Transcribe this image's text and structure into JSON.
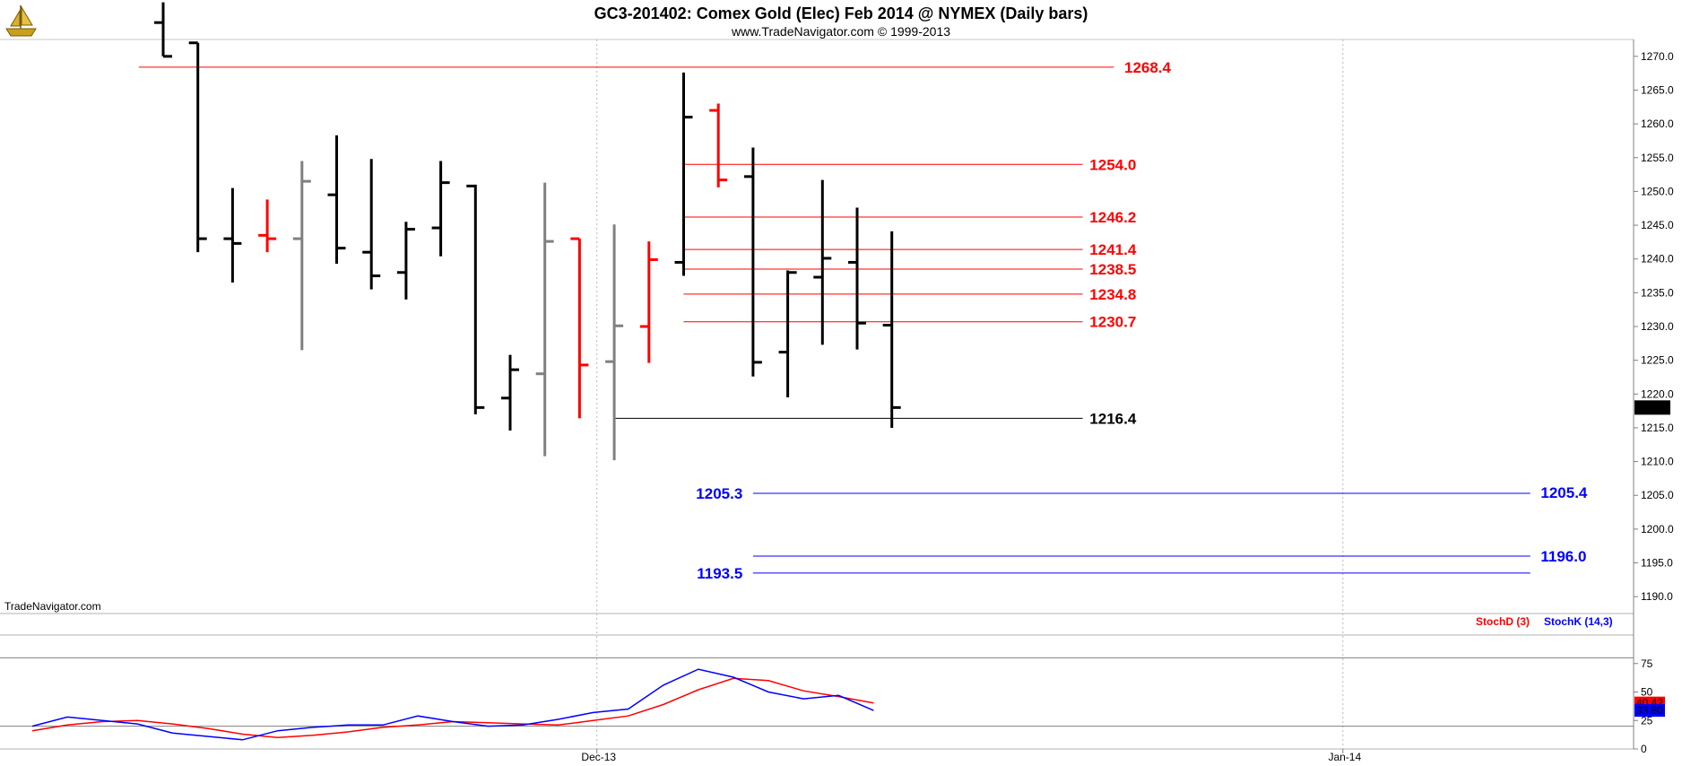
{
  "header": {
    "title": "GC3-201402:  Comex Gold (Elec) Feb 2014 @ NYMEX  (Daily bars)",
    "subtitle": "www.TradeNavigator.com © 1999-2013",
    "watermark": "TradeNavigator.com",
    "logo_icon": "caravel-ship-icon"
  },
  "colors": {
    "up_bar": "#000000",
    "down_bar": "#ff0000",
    "neutral_bar": "#808080",
    "resistance_line": "#ff0000",
    "support_line": "#0000ff",
    "stoch_d": "#ff0000",
    "stoch_k": "#0000ff",
    "background": "#ffffff"
  },
  "chart_data": [
    {
      "type": "ohlc",
      "title": "GC3-201402:  Comex Gold (Elec) Feb 2014 @ NYMEX  (Daily bars)",
      "ylim": [
        1187.5,
        1272.5
      ],
      "y_ticks": [
        "1270.0",
        "1265.0",
        "1260.0",
        "1255.0",
        "1250.0",
        "1245.0",
        "1240.0",
        "1235.0",
        "1230.0",
        "1225.0",
        "1220.0",
        "1215.0",
        "1210.0",
        "1205.0",
        "1200.0",
        "1195.0",
        "1190.0"
      ],
      "x_labels": [
        {
          "label": "Dec-13",
          "bar": 12.5
        },
        {
          "label": "Jan-14",
          "bar": 34
        }
      ],
      "last_price": "1218.0",
      "bars": [
        {
          "o": 1275.0,
          "h": 1278.0,
          "l": 1270.0,
          "c": 1270.0,
          "color": "black"
        },
        {
          "o": 1272.0,
          "h": 1272.0,
          "l": 1241.0,
          "c": 1243.0,
          "color": "black"
        },
        {
          "o": 1243.0,
          "h": 1250.5,
          "l": 1236.5,
          "c": 1242.3,
          "color": "black"
        },
        {
          "o": 1243.5,
          "h": 1248.8,
          "l": 1241.0,
          "c": 1243.0,
          "color": "red"
        },
        {
          "o": 1243.0,
          "h": 1254.5,
          "l": 1226.5,
          "c": 1251.5,
          "color": "gray"
        },
        {
          "o": 1249.5,
          "h": 1258.3,
          "l": 1239.3,
          "c": 1241.6,
          "color": "black"
        },
        {
          "o": 1241.0,
          "h": 1254.8,
          "l": 1235.5,
          "c": 1237.5,
          "color": "black"
        },
        {
          "o": 1238.0,
          "h": 1245.5,
          "l": 1234.0,
          "c": 1244.4,
          "color": "black"
        },
        {
          "o": 1244.6,
          "h": 1254.5,
          "l": 1240.4,
          "c": 1251.3,
          "color": "black"
        },
        {
          "o": 1250.8,
          "h": 1251.0,
          "l": 1217.0,
          "c": 1218.0,
          "color": "black"
        },
        {
          "o": 1219.4,
          "h": 1225.8,
          "l": 1214.6,
          "c": 1223.6,
          "color": "black"
        },
        {
          "o": 1223.0,
          "h": 1251.3,
          "l": 1210.8,
          "c": 1242.6,
          "color": "gray"
        },
        {
          "o": 1243.0,
          "h": 1243.0,
          "l": 1216.4,
          "c": 1224.3,
          "color": "red"
        },
        {
          "o": 1224.8,
          "h": 1245.1,
          "l": 1210.2,
          "c": 1230.1,
          "color": "gray"
        },
        {
          "o": 1230.0,
          "h": 1242.6,
          "l": 1224.6,
          "c": 1239.9,
          "color": "red"
        },
        {
          "o": 1239.5,
          "h": 1267.6,
          "l": 1237.5,
          "c": 1261.0,
          "color": "black"
        },
        {
          "o": 1262.0,
          "h": 1263.0,
          "l": 1250.6,
          "c": 1251.7,
          "color": "red"
        },
        {
          "o": 1252.2,
          "h": 1256.5,
          "l": 1222.6,
          "c": 1224.7,
          "color": "black"
        },
        {
          "o": 1226.2,
          "h": 1238.3,
          "l": 1219.5,
          "c": 1238.0,
          "color": "black"
        },
        {
          "o": 1237.3,
          "h": 1251.7,
          "l": 1227.3,
          "c": 1240.1,
          "color": "black"
        },
        {
          "o": 1239.5,
          "h": 1247.6,
          "l": 1226.6,
          "c": 1230.5,
          "color": "black"
        },
        {
          "o": 1230.2,
          "h": 1244.1,
          "l": 1215.0,
          "c": 1218.0,
          "color": "black"
        }
      ],
      "levels": [
        {
          "value": 1268.4,
          "label": "1268.4",
          "color": "red",
          "from_bar": -0.7,
          "to_bar": 27.4,
          "label_side": "right",
          "label_at": 27.7
        },
        {
          "value": 1254.0,
          "label": "1254.0",
          "color": "red",
          "from_bar": 15.0,
          "to_bar": 26.5,
          "label_side": "right",
          "label_at": 26.7
        },
        {
          "value": 1246.2,
          "label": "1246.2",
          "color": "red",
          "from_bar": 15.0,
          "to_bar": 26.5,
          "label_side": "right",
          "label_at": 26.7
        },
        {
          "value": 1241.4,
          "label": "1241.4",
          "color": "red",
          "from_bar": 15.0,
          "to_bar": 26.5,
          "label_side": "right",
          "label_at": 26.7
        },
        {
          "value": 1238.5,
          "label": "1238.5",
          "color": "red",
          "from_bar": 15.0,
          "to_bar": 26.5,
          "label_side": "right",
          "label_at": 26.7
        },
        {
          "value": 1234.8,
          "label": "1234.8",
          "color": "red",
          "from_bar": 15.0,
          "to_bar": 26.5,
          "label_side": "right",
          "label_at": 26.7
        },
        {
          "value": 1230.7,
          "label": "1230.7",
          "color": "red",
          "from_bar": 15.0,
          "to_bar": 26.5,
          "label_side": "right",
          "label_at": 26.7
        },
        {
          "value": 1216.4,
          "label": "1216.4",
          "color": "black",
          "from_bar": 13.0,
          "to_bar": 26.5,
          "label_side": "right",
          "label_at": 26.7
        },
        {
          "value": 1205.3,
          "label": "1205.3",
          "color": "blue",
          "from_bar": 17.0,
          "to_bar": 39.4,
          "label_side": "left",
          "label_at": 16.7
        },
        {
          "value": 1205.4,
          "label": "1205.4",
          "color": "blue",
          "from_bar": 39.4,
          "to_bar": 39.4,
          "label_side": "right",
          "label_at": 39.7
        },
        {
          "value": 1196.0,
          "label": "1196.0",
          "color": "blue",
          "from_bar": 17.0,
          "to_bar": 39.4,
          "label_side": "right",
          "label_at": 39.7
        },
        {
          "value": 1193.5,
          "label": "1193.5",
          "color": "blue",
          "from_bar": 17.0,
          "to_bar": 39.4,
          "label_side": "left",
          "label_at": 16.7
        }
      ]
    },
    {
      "type": "line",
      "legend": [
        {
          "name": "StochD (3)",
          "color": "red"
        },
        {
          "name": "StochK (14,3)",
          "color": "blue"
        }
      ],
      "ylim": [
        0,
        100
      ],
      "y_ticks": [
        "75",
        "50",
        "25",
        "0"
      ],
      "bands": [
        20,
        80
      ],
      "last_values": {
        "stochD": "40.42",
        "stochK": "33.80"
      },
      "series": [
        {
          "name": "StochD (3)",
          "values": [
            16,
            21,
            24,
            25,
            22,
            18,
            13,
            10,
            12,
            15,
            19,
            21,
            24,
            23,
            22,
            21,
            25,
            29,
            39,
            52,
            62,
            60,
            51,
            46,
            40.42
          ]
        },
        {
          "name": "StochK (14,3)",
          "values": [
            20,
            28,
            25,
            22,
            14,
            11,
            8,
            16,
            19,
            21,
            21,
            29,
            24,
            20,
            21,
            26,
            32,
            35,
            56,
            70,
            63,
            50,
            44,
            47,
            33.8
          ]
        }
      ]
    }
  ]
}
